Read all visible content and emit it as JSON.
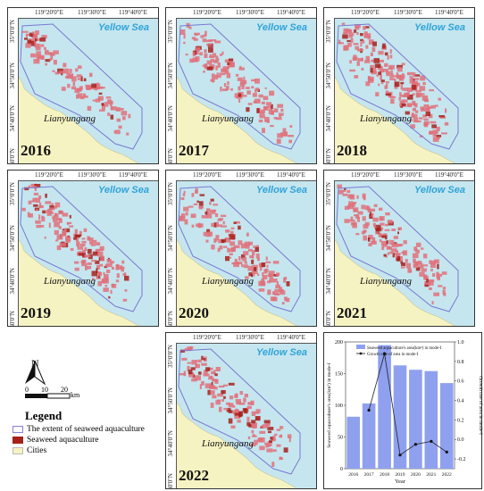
{
  "map_panels": [
    {
      "year": "2016",
      "density": 0.35
    },
    {
      "year": "2017",
      "density": 0.55
    },
    {
      "year": "2018",
      "density": 0.95
    },
    {
      "year": "2019",
      "density": 0.7
    },
    {
      "year": "2020",
      "density": 0.65
    },
    {
      "year": "2021",
      "density": 0.65
    },
    {
      "year": "2022",
      "density": 0.55
    }
  ],
  "map_labels": {
    "sea": "Yellow Sea",
    "city": "Lianyungang",
    "lon_ticks": [
      "119°20'0\"E",
      "119°30'0\"E",
      "119°40'0\"E"
    ],
    "lat_ticks": [
      "35°0'0\"N",
      "34°50'0\"N",
      "34°40'0\"N",
      "34°30'0\"N"
    ]
  },
  "north_arrow": "N",
  "scale_bar": {
    "ticks": [
      "0",
      "10",
      "20"
    ],
    "unit": "km"
  },
  "legend": {
    "title": "Legend",
    "items": [
      {
        "label": "The extent of seaweed aquaculture",
        "swatch": "outline",
        "color": "#8a7fd8"
      },
      {
        "label": "Seaweed aquaculture",
        "swatch": "fill",
        "color": "#a8201a"
      },
      {
        "label": "Cities",
        "swatch": "fill",
        "color": "#f6f3c2"
      }
    ]
  },
  "colors": {
    "sea": "#c5e6ef",
    "land": "#f6f3c2",
    "extent_outline": "#7a78d0",
    "aquaculture": "#e0707a",
    "bar": "#8fa0ef",
    "line": "#222222"
  },
  "chart_data": {
    "type": "bar+line",
    "categories": [
      "2016",
      "2017",
      "2018",
      "2019",
      "2020",
      "2021",
      "2022"
    ],
    "series": [
      {
        "name": "Seaweed aquaculture's area(km²) in mode-I",
        "axis": "left",
        "kind": "bar",
        "values": [
          82,
          103,
          195,
          163,
          156,
          154,
          135
        ]
      },
      {
        "name": "Growth rate of area in mode-I",
        "axis": "right",
        "kind": "line",
        "values": [
          null,
          0.3,
          0.88,
          -0.16,
          -0.05,
          -0.02,
          -0.13
        ]
      }
    ],
    "xlabel": "Year",
    "ylabel_left": "Seaweed aquaculture's area(km²) in mode-I",
    "ylabel_right": "Growth rate of area in mode-I",
    "ylim_left": [
      0,
      200
    ],
    "yticks_left": [
      "0",
      "50",
      "100",
      "150",
      "200"
    ],
    "ylim_right": [
      -0.3,
      1.0
    ],
    "yticks_right": [
      "-0.2",
      "0.0",
      "0.2",
      "0.4",
      "0.6",
      "0.8",
      "1.0"
    ],
    "legend_position": "top"
  }
}
